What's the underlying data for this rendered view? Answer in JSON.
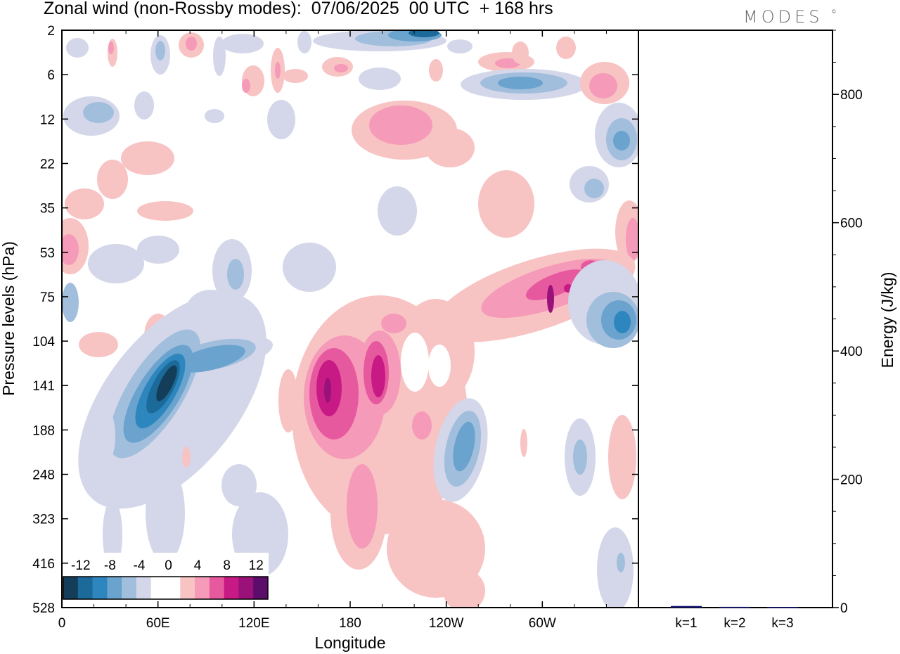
{
  "header": {
    "title": "Zonal wind (non-Rossby modes):  07/06/2025  00 UTC  + 168 hrs",
    "logo_text": "MODES",
    "logo_mark": "©"
  },
  "chart_data": [
    {
      "type": "heatmap",
      "title": "Zonal wind (non-Rossby modes):  07/06/2025  00 UTC  + 168 hrs",
      "xlabel": "Longitude",
      "ylabel": "Pressure levels (hPa)",
      "x_ticks": [
        "0",
        "60E",
        "120E",
        "180",
        "120W",
        "60W"
      ],
      "x_tick_positions_deg": [
        0,
        60,
        120,
        180,
        240,
        300
      ],
      "xlim": [
        0,
        360
      ],
      "y_ticks": [
        "2",
        "6",
        "12",
        "22",
        "35",
        "53",
        "75",
        "104",
        "141",
        "188",
        "248",
        "323",
        "416",
        "528"
      ],
      "colorbar": {
        "labels": [
          "-12",
          "-8",
          "-4",
          "0",
          "4",
          "8",
          "12"
        ],
        "colors": [
          "#143d59",
          "#1b6a9a",
          "#2e86be",
          "#6aa3cd",
          "#a2bedd",
          "#d4d7e9",
          "#ffffff",
          "#ffffff",
          "#f8c3c3",
          "#f59ab8",
          "#e7599f",
          "#c71a85",
          "#991179",
          "#5c0c6b"
        ]
      },
      "features": [
        {
          "lon": 60,
          "level": "141",
          "sign": "negative",
          "peak": -14
        },
        {
          "lon": 165,
          "level": "141",
          "sign": "positive",
          "peak": 12
        },
        {
          "lon": 195,
          "level": "141",
          "sign": "positive",
          "peak": 10
        },
        {
          "lon": 295,
          "level": "75",
          "sign": "positive",
          "peak": 10
        },
        {
          "lon": 350,
          "level": "104",
          "sign": "negative",
          "peak": -8
        },
        {
          "lon": 225,
          "level": "2",
          "sign": "negative",
          "peak": -12
        },
        {
          "lon": 200,
          "level": "12",
          "sign": "positive",
          "peak": 6
        }
      ]
    },
    {
      "type": "bar",
      "ylabel": "Energy (J/kg)",
      "categories": [
        "k=1",
        "k=2",
        "k=3"
      ],
      "values": [
        2.5,
        1.2,
        0.8
      ],
      "ylim": [
        0,
        900
      ],
      "y_ticks": [
        "0",
        "200",
        "400",
        "600",
        "800"
      ],
      "bar_color": "#1a1a7a"
    }
  ]
}
